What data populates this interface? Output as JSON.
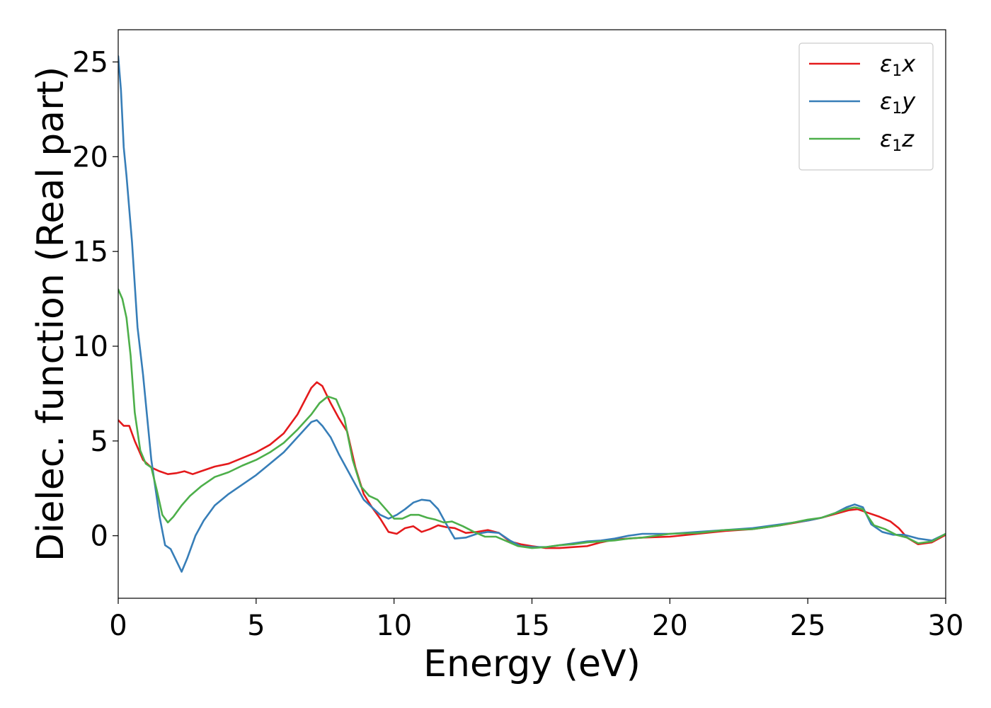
{
  "chart_data": {
    "type": "line",
    "title": "",
    "xlabel": "Energy (eV)",
    "ylabel": "Dielec. function (Real part)",
    "xlim": [
      0,
      30
    ],
    "ylim": [
      -3.3,
      26.7
    ],
    "xticks": [
      0,
      5,
      10,
      15,
      20,
      25,
      30
    ],
    "yticks": [
      0,
      5,
      10,
      15,
      20,
      25
    ],
    "grid": false,
    "legend_position": "top-right",
    "series": [
      {
        "name": "ε1x",
        "legend_base": "ε",
        "legend_sub": "1",
        "legend_var": "x",
        "color": "#e41a1c",
        "x": [
          0,
          0.2,
          0.4,
          0.6,
          0.9,
          1.2,
          1.5,
          1.8,
          2.1,
          2.4,
          2.7,
          3.0,
          3.5,
          4.0,
          4.5,
          5.0,
          5.5,
          6.0,
          6.5,
          7.0,
          7.2,
          7.4,
          7.7,
          8.0,
          8.3,
          8.6,
          8.9,
          9.2,
          9.5,
          9.8,
          10.1,
          10.4,
          10.7,
          11.0,
          11.3,
          11.6,
          11.9,
          12.2,
          12.6,
          13.0,
          13.4,
          13.8,
          14.2,
          14.6,
          15.0,
          15.5,
          16.0,
          16.5,
          17.0,
          17.5,
          18.0,
          18.5,
          19.0,
          20.0,
          21.0,
          22.0,
          23.0,
          24.0,
          25.0,
          25.5,
          26.0,
          26.5,
          26.8,
          27.2,
          27.6,
          28.0,
          28.3,
          28.6,
          29.0,
          29.5,
          30.0
        ],
        "y": [
          6.1,
          5.8,
          5.8,
          5.0,
          4.0,
          3.6,
          3.4,
          3.25,
          3.3,
          3.4,
          3.25,
          3.4,
          3.65,
          3.8,
          4.1,
          4.4,
          4.8,
          5.4,
          6.4,
          7.8,
          8.1,
          7.9,
          7.0,
          6.2,
          5.5,
          3.6,
          2.2,
          1.5,
          0.9,
          0.2,
          0.1,
          0.4,
          0.5,
          0.2,
          0.35,
          0.55,
          0.45,
          0.4,
          0.15,
          0.2,
          0.3,
          0.15,
          -0.3,
          -0.45,
          -0.55,
          -0.65,
          -0.65,
          -0.6,
          -0.55,
          -0.35,
          -0.2,
          -0.15,
          -0.1,
          -0.05,
          0.1,
          0.25,
          0.35,
          0.55,
          0.8,
          0.95,
          1.15,
          1.35,
          1.4,
          1.2,
          1.0,
          0.75,
          0.4,
          -0.1,
          -0.45,
          -0.35,
          0.05
        ]
      },
      {
        "name": "ε1y",
        "legend_base": "ε",
        "legend_sub": "1",
        "legend_var": "y",
        "color": "#377eb8",
        "x": [
          0,
          0.1,
          0.2,
          0.3,
          0.5,
          0.7,
          0.9,
          1.2,
          1.5,
          1.7,
          1.9,
          2.1,
          2.3,
          2.5,
          2.8,
          3.1,
          3.5,
          4.0,
          4.5,
          5.0,
          5.5,
          6.0,
          6.5,
          7.0,
          7.2,
          7.4,
          7.7,
          8.0,
          8.3,
          8.6,
          8.9,
          9.2,
          9.5,
          9.8,
          10.1,
          10.4,
          10.7,
          11.0,
          11.3,
          11.6,
          11.9,
          12.2,
          12.6,
          13.0,
          13.4,
          13.8,
          14.2,
          14.6,
          15.0,
          15.5,
          16.0,
          16.5,
          17.0,
          17.5,
          18.0,
          18.5,
          19.0,
          20.0,
          21.0,
          22.0,
          23.0,
          24.0,
          25.0,
          25.5,
          26.0,
          26.4,
          26.7,
          27.0,
          27.3,
          27.7,
          28.1,
          28.5,
          29.0,
          29.5,
          30.0
        ],
        "y": [
          25.3,
          23.5,
          20.5,
          19.0,
          15.5,
          11.0,
          8.5,
          4.0,
          1.0,
          -0.5,
          -0.7,
          -1.3,
          -1.9,
          -1.2,
          0.0,
          0.8,
          1.6,
          2.2,
          2.7,
          3.2,
          3.8,
          4.4,
          5.2,
          6.0,
          6.1,
          5.8,
          5.2,
          4.3,
          3.5,
          2.7,
          1.9,
          1.5,
          1.1,
          0.9,
          1.1,
          1.4,
          1.75,
          1.9,
          1.85,
          1.4,
          0.6,
          -0.15,
          -0.1,
          0.1,
          0.2,
          0.15,
          -0.25,
          -0.55,
          -0.6,
          -0.6,
          -0.5,
          -0.4,
          -0.3,
          -0.25,
          -0.15,
          0.0,
          0.1,
          0.1,
          0.2,
          0.3,
          0.4,
          0.6,
          0.8,
          0.95,
          1.2,
          1.5,
          1.65,
          1.5,
          0.6,
          0.2,
          0.05,
          0.05,
          -0.15,
          -0.25,
          0.1
        ]
      },
      {
        "name": "ε1z",
        "legend_base": "ε",
        "legend_sub": "1",
        "legend_var": "z",
        "color": "#4daf4a",
        "x": [
          0,
          0.15,
          0.3,
          0.45,
          0.6,
          0.8,
          1.0,
          1.2,
          1.4,
          1.6,
          1.8,
          2.0,
          2.3,
          2.6,
          3.0,
          3.5,
          4.0,
          4.5,
          5.0,
          5.5,
          6.0,
          6.5,
          7.0,
          7.3,
          7.6,
          7.9,
          8.2,
          8.5,
          8.8,
          9.1,
          9.4,
          9.7,
          10.0,
          10.3,
          10.6,
          10.9,
          11.2,
          11.5,
          11.8,
          12.1,
          12.5,
          12.9,
          13.3,
          13.7,
          14.1,
          14.5,
          15.0,
          15.5,
          16.0,
          16.5,
          17.0,
          17.5,
          18.0,
          18.5,
          19.0,
          20.0,
          21.0,
          22.0,
          23.0,
          24.0,
          25.0,
          25.5,
          26.0,
          26.4,
          26.7,
          27.0,
          27.4,
          27.8,
          28.2,
          28.6,
          29.0,
          29.5,
          30.0
        ],
        "y": [
          13.0,
          12.5,
          11.5,
          9.5,
          6.5,
          4.5,
          3.8,
          3.6,
          2.4,
          1.1,
          0.7,
          1.0,
          1.6,
          2.1,
          2.6,
          3.1,
          3.35,
          3.7,
          4.0,
          4.4,
          4.9,
          5.6,
          6.4,
          7.0,
          7.35,
          7.2,
          6.2,
          4.0,
          2.6,
          2.1,
          1.9,
          1.4,
          0.9,
          0.9,
          1.1,
          1.1,
          0.95,
          0.85,
          0.7,
          0.75,
          0.5,
          0.2,
          -0.05,
          -0.05,
          -0.3,
          -0.55,
          -0.65,
          -0.6,
          -0.5,
          -0.45,
          -0.35,
          -0.3,
          -0.25,
          -0.15,
          -0.1,
          0.1,
          0.15,
          0.3,
          0.35,
          0.55,
          0.85,
          0.95,
          1.2,
          1.4,
          1.5,
          1.4,
          0.55,
          0.35,
          0.05,
          -0.1,
          -0.4,
          -0.3,
          0.1
        ]
      }
    ]
  }
}
